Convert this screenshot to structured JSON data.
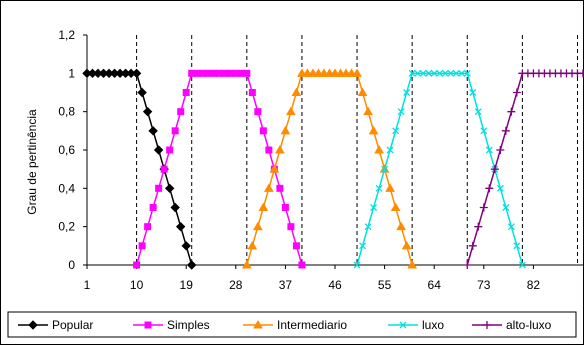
{
  "chart_data": {
    "type": "line",
    "ylabel": "Grau de pertinência",
    "xlabel": "",
    "title": "",
    "xlim": [
      1,
      91
    ],
    "ylim": [
      0,
      1.2
    ],
    "x_ticks": [
      1,
      10,
      19,
      28,
      37,
      46,
      55,
      64,
      73,
      82
    ],
    "x_tick_labels": [
      "1",
      "10",
      "19",
      "28",
      "37",
      "46",
      "55",
      "64",
      "73",
      "82"
    ],
    "y_ticks": [
      0,
      0.2,
      0.4,
      0.6,
      0.8,
      1,
      1.2
    ],
    "y_tick_labels": [
      "0",
      "0,2",
      "0,4",
      "0,6",
      "0,8",
      "1",
      "1,2"
    ],
    "vertical_dashed_lines_x": [
      10,
      20,
      30,
      40,
      50,
      60,
      70,
      80,
      90
    ],
    "legend_position": "bottom",
    "series": [
      {
        "name": "Popular",
        "color": "#000000",
        "marker": "diamond",
        "x": [
          1,
          2,
          3,
          4,
          5,
          6,
          7,
          8,
          9,
          10,
          11,
          12,
          13,
          14,
          15,
          16,
          17,
          18,
          19,
          20
        ],
        "y": [
          1,
          1,
          1,
          1,
          1,
          1,
          1,
          1,
          1,
          1,
          0.9,
          0.8,
          0.7,
          0.6,
          0.5,
          0.4,
          0.3,
          0.2,
          0.1,
          0
        ]
      },
      {
        "name": "Simples",
        "color": "#ff00ff",
        "marker": "square",
        "x": [
          10,
          11,
          12,
          13,
          14,
          15,
          16,
          17,
          18,
          19,
          20,
          21,
          22,
          23,
          24,
          25,
          26,
          27,
          28,
          29,
          30,
          31,
          32,
          33,
          34,
          35,
          36,
          37,
          38,
          39,
          40
        ],
        "y": [
          0,
          0.1,
          0.2,
          0.3,
          0.4,
          0.5,
          0.6,
          0.7,
          0.8,
          0.9,
          1,
          1,
          1,
          1,
          1,
          1,
          1,
          1,
          1,
          1,
          1,
          0.9,
          0.8,
          0.7,
          0.6,
          0.5,
          0.4,
          0.3,
          0.2,
          0.1,
          0
        ]
      },
      {
        "name": "Intermediario",
        "color": "#ff8c00",
        "marker": "triangle",
        "x": [
          30,
          31,
          32,
          33,
          34,
          35,
          36,
          37,
          38,
          39,
          40,
          41,
          42,
          43,
          44,
          45,
          46,
          47,
          48,
          49,
          50,
          51,
          52,
          53,
          54,
          55,
          56,
          57,
          58,
          59,
          60
        ],
        "y": [
          0,
          0.1,
          0.2,
          0.3,
          0.4,
          0.5,
          0.6,
          0.7,
          0.8,
          0.9,
          1,
          1,
          1,
          1,
          1,
          1,
          1,
          1,
          1,
          1,
          1,
          0.9,
          0.8,
          0.7,
          0.6,
          0.5,
          0.4,
          0.3,
          0.2,
          0.1,
          0
        ]
      },
      {
        "name": "luxo",
        "color": "#00e0e0",
        "marker": "x",
        "x": [
          50,
          51,
          52,
          53,
          54,
          55,
          56,
          57,
          58,
          59,
          60,
          61,
          62,
          63,
          64,
          65,
          66,
          67,
          68,
          69,
          70,
          71,
          72,
          73,
          74,
          75,
          76,
          77,
          78,
          79,
          80
        ],
        "y": [
          0,
          0.1,
          0.2,
          0.3,
          0.4,
          0.5,
          0.6,
          0.7,
          0.8,
          0.9,
          1,
          1,
          1,
          1,
          1,
          1,
          1,
          1,
          1,
          1,
          1,
          0.9,
          0.8,
          0.7,
          0.6,
          0.5,
          0.4,
          0.3,
          0.2,
          0.1,
          0
        ]
      },
      {
        "name": "alto-luxo",
        "color": "#800080",
        "marker": "plus",
        "x": [
          70,
          71,
          72,
          73,
          74,
          75,
          76,
          77,
          78,
          79,
          80,
          81,
          82,
          83,
          84,
          85,
          86,
          87,
          88,
          89,
          90,
          91
        ],
        "y": [
          0,
          0.1,
          0.2,
          0.3,
          0.4,
          0.5,
          0.6,
          0.7,
          0.8,
          0.9,
          1,
          1,
          1,
          1,
          1,
          1,
          1,
          1,
          1,
          1,
          1,
          1
        ]
      }
    ]
  }
}
